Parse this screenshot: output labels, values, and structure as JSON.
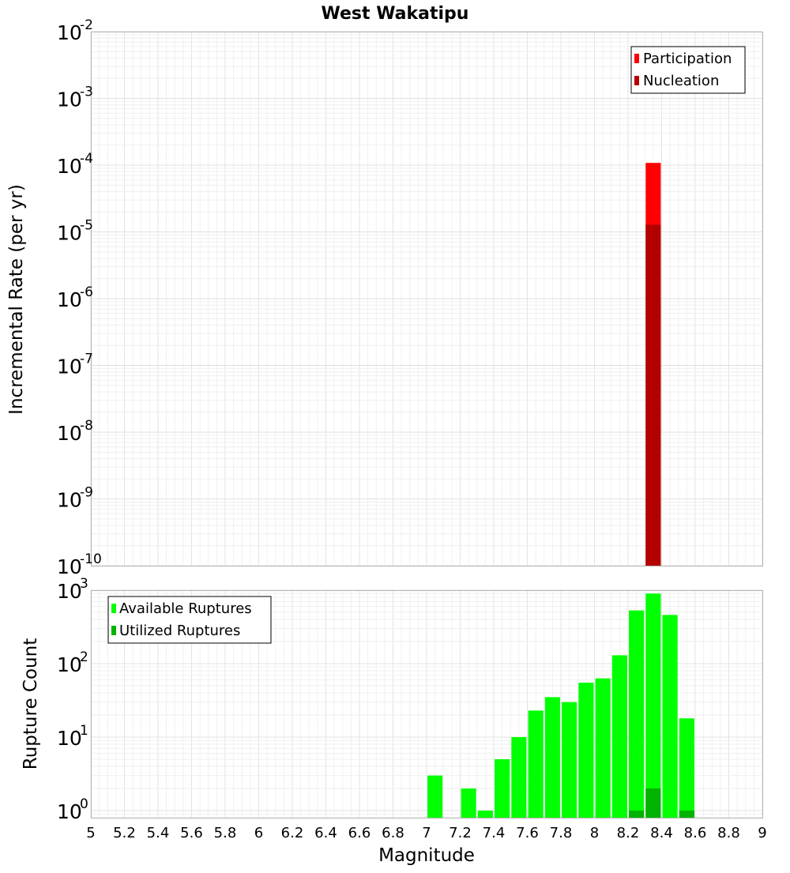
{
  "chart_data": [
    {
      "type": "bar",
      "title": "West Wakatipu",
      "xlabel": "",
      "ylabel": "Incremental Rate (per yr)",
      "xlim": [
        5,
        9
      ],
      "ylim": [
        1e-10,
        0.01
      ],
      "yscale": "log",
      "y_ticks": [
        {
          "base": "10",
          "exp": "-2",
          "value": 0.01
        },
        {
          "base": "10",
          "exp": "-3",
          "value": 0.001
        },
        {
          "base": "10",
          "exp": "-4",
          "value": 0.0001
        },
        {
          "base": "10",
          "exp": "-5",
          "value": 1e-05
        },
        {
          "base": "10",
          "exp": "-6",
          "value": 1e-06
        },
        {
          "base": "10",
          "exp": "-7",
          "value": 1e-07
        },
        {
          "base": "10",
          "exp": "-8",
          "value": 1e-08
        },
        {
          "base": "10",
          "exp": "-9",
          "value": 1e-09
        },
        {
          "base": "10",
          "exp": "-10",
          "value": 1e-10
        }
      ],
      "grid": true,
      "legend_position": "top-right",
      "bar_width": 0.09,
      "series": [
        {
          "name": "Participation",
          "color": "#ff0000",
          "x": [
            8.35
          ],
          "values": [
            0.000108
          ]
        },
        {
          "name": "Nucleation",
          "color": "#b30000",
          "x": [
            8.35
          ],
          "values": [
            1.28e-05
          ]
        }
      ]
    },
    {
      "type": "bar",
      "title": "",
      "xlabel": "Magnitude",
      "ylabel": "Rupture Count",
      "xlim": [
        5,
        9
      ],
      "ylim": [
        0.8,
        1000
      ],
      "yscale": "log",
      "y_ticks": [
        {
          "base": "10",
          "exp": "3",
          "value": 1000
        },
        {
          "base": "10",
          "exp": "2",
          "value": 100
        },
        {
          "base": "10",
          "exp": "1",
          "value": 10
        },
        {
          "base": "10",
          "exp": "0",
          "value": 1
        }
      ],
      "x_ticks": [
        "5",
        "5.2",
        "5.4",
        "5.6",
        "5.8",
        "6",
        "6.2",
        "6.4",
        "6.6",
        "6.8",
        "7",
        "7.2",
        "7.4",
        "7.6",
        "7.8",
        "8",
        "8.2",
        "8.4",
        "8.6",
        "8.8",
        "9"
      ],
      "grid": true,
      "legend_position": "top-left",
      "bar_width": 0.09,
      "series": [
        {
          "name": "Available Ruptures",
          "color": "#00ff00",
          "x": [
            7.05,
            7.25,
            7.35,
            7.45,
            7.55,
            7.65,
            7.75,
            7.85,
            7.95,
            8.05,
            8.15,
            8.25,
            8.35,
            8.45,
            8.55
          ],
          "values": [
            3,
            2,
            1,
            5,
            10,
            23,
            35,
            30,
            55,
            63,
            130,
            530,
            900,
            460,
            18
          ]
        },
        {
          "name": "Utilized Ruptures",
          "color": "#00b300",
          "x": [
            8.25,
            8.35,
            8.55
          ],
          "values": [
            1,
            2,
            1
          ]
        }
      ]
    }
  ]
}
